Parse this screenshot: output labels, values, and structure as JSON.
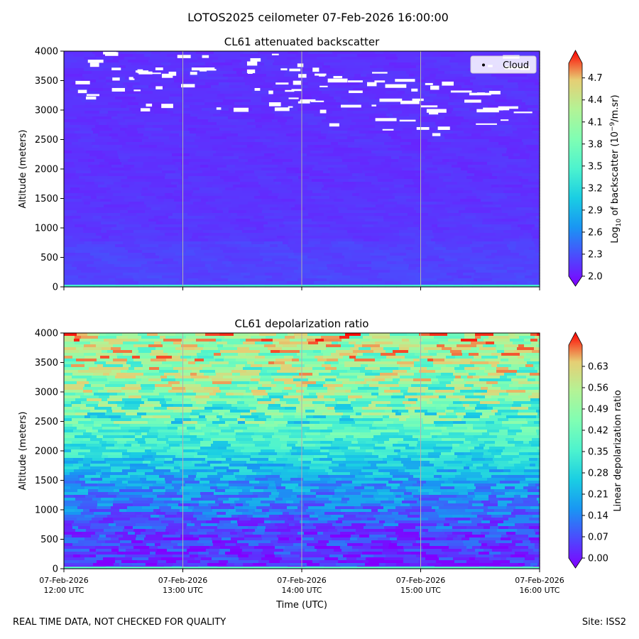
{
  "figure": {
    "suptitle": "LOTOS2025 ceilometer 07-Feb-2026 16:00:00",
    "xlabel": "Time (UTC)",
    "footer_left": "REAL TIME DATA, NOT CHECKED FOR QUALITY",
    "footer_right": "Site: ISS2"
  },
  "chart_data": [
    {
      "type": "heatmap",
      "title": "CL61 attenuated backscatter",
      "xlabel": "",
      "ylabel": "Altitude (meters)",
      "x_ticks": [
        {
          "date": "07-Feb-2026",
          "time": "12:00 UTC"
        },
        {
          "date": "07-Feb-2026",
          "time": "13:00 UTC"
        },
        {
          "date": "07-Feb-2026",
          "time": "14:00 UTC"
        },
        {
          "date": "07-Feb-2026",
          "time": "15:00 UTC"
        },
        {
          "date": "07-Feb-2026",
          "time": "16:00 UTC"
        }
      ],
      "x_range_hours_utc": [
        12,
        16
      ],
      "ylim": [
        0,
        4000
      ],
      "y_ticks": [
        0,
        500,
        1000,
        1500,
        2000,
        2500,
        3000,
        3500,
        4000
      ],
      "colorbar": {
        "label_prefix": "Log",
        "label_sub": "10",
        "label_mid": " of backscatter (10",
        "label_sup": "−9",
        "label_suffix": "/m.sr)",
        "range": [
          2.0,
          4.9
        ],
        "ticks": [
          "2.0",
          "2.3",
          "2.6",
          "2.9",
          "3.2",
          "3.5",
          "3.8",
          "4.1",
          "4.4",
          "4.7"
        ],
        "colormap": "rainbow",
        "extend": "both"
      },
      "legend": {
        "label": "Cloud",
        "position": "top-right"
      },
      "profile_description": "Values near 2.2-2.4 across the column with a thin high-value layer at the surface; sparse cloud detections (white) above ~3000 m, denser after 14:00 UTC"
    },
    {
      "type": "heatmap",
      "title": "CL61 depolarization ratio",
      "xlabel": "Time (UTC)",
      "ylabel": "Altitude (meters)",
      "x_ticks": [
        {
          "date": "07-Feb-2026",
          "time": "12:00 UTC"
        },
        {
          "date": "07-Feb-2026",
          "time": "13:00 UTC"
        },
        {
          "date": "07-Feb-2026",
          "time": "14:00 UTC"
        },
        {
          "date": "07-Feb-2026",
          "time": "15:00 UTC"
        },
        {
          "date": "07-Feb-2026",
          "time": "16:00 UTC"
        }
      ],
      "x_range_hours_utc": [
        12,
        16
      ],
      "ylim": [
        0,
        4000
      ],
      "y_ticks": [
        0,
        500,
        1000,
        1500,
        2000,
        2500,
        3000,
        3500,
        4000
      ],
      "colorbar": {
        "label": "Linear depolarization ratio",
        "range": [
          0.0,
          0.7
        ],
        "ticks": [
          "0.00",
          "0.07",
          "0.14",
          "0.21",
          "0.28",
          "0.35",
          "0.42",
          "0.49",
          "0.56",
          "0.63"
        ],
        "colormap": "rainbow",
        "extend": "both"
      },
      "profile_description": "Ratio ~0.05 near the surface rising to ~0.2 around 1500 m, ~0.35 around 2000-2500 m and 0.45-0.65 above 3000 m"
    }
  ]
}
